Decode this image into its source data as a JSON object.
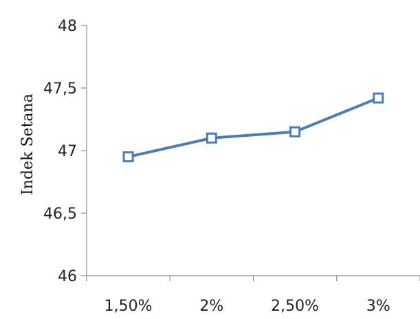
{
  "chart_data": {
    "type": "line",
    "title": "",
    "xlabel": "",
    "ylabel": "Indek Setana",
    "categories": [
      "1,50%",
      "2%",
      "2,50%",
      "3%"
    ],
    "series": [
      {
        "values": [
          46.95,
          47.1,
          47.15,
          47.42
        ],
        "color": "#4A7EBB",
        "marker": "square-hollow"
      }
    ],
    "ylim": [
      46,
      48
    ],
    "yticks": [
      46,
      46.5,
      47,
      47.5,
      48
    ],
    "ytick_labels": [
      "46",
      "46,5",
      "47",
      "47,5",
      "48"
    ],
    "grid": false,
    "legend": "none"
  }
}
